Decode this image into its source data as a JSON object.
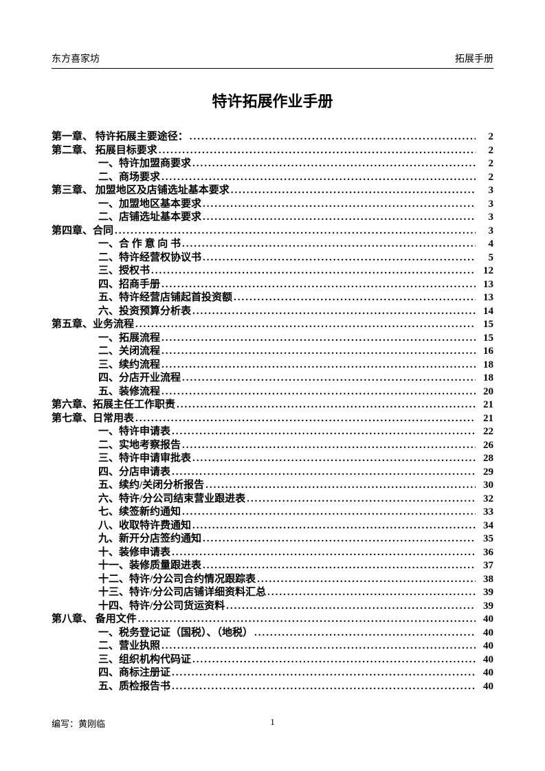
{
  "header": {
    "left": "东方喜家坊",
    "right": "拓展手册"
  },
  "title": "特许拓展作业手册",
  "toc": [
    {
      "level": 0,
      "label": "第一章、 特许拓展主要途径：",
      "page": "2"
    },
    {
      "level": 0,
      "label": "第二章、 拓展目标要求",
      "page": "2"
    },
    {
      "level": 1,
      "label": "一、特许加盟商要求",
      "page": "2"
    },
    {
      "level": 1,
      "label": "二、商场要求",
      "page": "2"
    },
    {
      "level": 0,
      "label": "第三章、 加盟地区及店铺选址基本要求",
      "page": "3"
    },
    {
      "level": 1,
      "label": "一、加盟地区基本要求",
      "page": "3"
    },
    {
      "level": 1,
      "label": "二、店铺选址基本要求",
      "page": "3"
    },
    {
      "level": 0,
      "label": "第四章、合同",
      "page": "3"
    },
    {
      "level": 1,
      "label": "一、合 作 意 向 书",
      "page": "4",
      "spaced": true
    },
    {
      "level": 1,
      "label": "二、特许经营权协议书",
      "page": "5"
    },
    {
      "level": 1,
      "label": "三、授权书",
      "page": "12"
    },
    {
      "level": 1,
      "label": "四、招商手册",
      "page": "13"
    },
    {
      "level": 1,
      "label": "五、特许经营店铺起首投资额",
      "page": "13"
    },
    {
      "level": 1,
      "label": "六、投资预算分析表",
      "page": "14"
    },
    {
      "level": 0,
      "label": "第五章、业务流程",
      "page": "15"
    },
    {
      "level": 1,
      "label": "一、拓展流程",
      "page": "15"
    },
    {
      "level": 1,
      "label": "二、关闭流程",
      "page": "16"
    },
    {
      "level": 1,
      "label": "三、续约流程",
      "page": "18"
    },
    {
      "level": 1,
      "label": "四、分店开业流程",
      "page": "18"
    },
    {
      "level": 1,
      "label": "五、装修流程",
      "page": "20"
    },
    {
      "level": 0,
      "label": "第六章、拓展主任工作职责",
      "page": "21"
    },
    {
      "level": 0,
      "label": "第七章、日常用表",
      "page": "21"
    },
    {
      "level": 1,
      "label": "一、特许申请表",
      "page": "22"
    },
    {
      "level": 1,
      "label": "二、实地考察报告",
      "page": "26"
    },
    {
      "level": 1,
      "label": "三、特许申请审批表",
      "page": "28"
    },
    {
      "level": 1,
      "label": "四、分店申请表",
      "page": "29"
    },
    {
      "level": 1,
      "label": "五、续约/关闭分析报告",
      "page": "30"
    },
    {
      "level": 1,
      "label": "六、特许/分公司结束营业跟进表",
      "page": "32"
    },
    {
      "level": 1,
      "label": "七、续签新约通知",
      "page": "33"
    },
    {
      "level": 1,
      "label": "八、收取特许费通知",
      "page": "34"
    },
    {
      "level": 1,
      "label": "九、新开分店签约通知",
      "page": "35"
    },
    {
      "level": 1,
      "label": "十、装修申请表",
      "page": "36"
    },
    {
      "level": 1,
      "label": "十一、装修质量跟进表",
      "page": "37"
    },
    {
      "level": 1,
      "label": "十二、特许/分公司合约情况跟踪表",
      "page": "38"
    },
    {
      "level": 1,
      "label": "十三、特许/分公司店铺详细资料汇总",
      "page": "39"
    },
    {
      "level": 1,
      "label": "十四、特许/分公司货运资料",
      "page": "39"
    },
    {
      "level": 0,
      "label": "第八章、 备用文件",
      "page": "40"
    },
    {
      "level": 1,
      "label": "一、税务登记证（国税）、（地税）",
      "page": "40"
    },
    {
      "level": 1,
      "label": "二、营业执照",
      "page": "40"
    },
    {
      "level": 1,
      "label": "三、组织机构代码证",
      "page": "40"
    },
    {
      "level": 1,
      "label": "四、商标注册证",
      "page": "40"
    },
    {
      "level": 1,
      "label": "五、质检报告书",
      "page": "40"
    }
  ],
  "footer": {
    "author": "编写：黄刚临",
    "page": "1"
  },
  "style": {
    "page_bg": "#ffffff",
    "text_color": "#000000",
    "title_fontsize": 22,
    "body_fontsize": 15,
    "header_fontsize": 14,
    "footer_fontsize": 13
  }
}
